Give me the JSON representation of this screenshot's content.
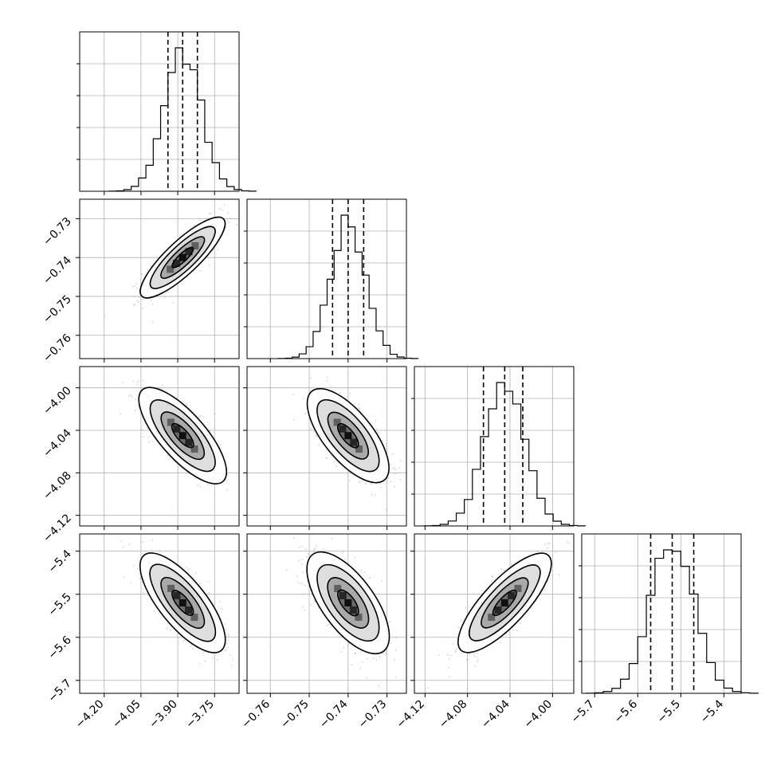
{
  "chart_data": {
    "type": "corner",
    "title": "",
    "grid": true,
    "quantile_lines": "dashed",
    "parameters": [
      {
        "range": [
          -4.3,
          -3.65
        ],
        "ticks": [
          -4.2,
          -4.05,
          -3.9,
          -3.75
        ],
        "tick_labels": [
          "−4.20",
          "−4.05",
          "−3.90",
          "−3.75"
        ],
        "quantiles": [
          -3.94,
          -3.88,
          -3.82
        ],
        "mean": -3.88,
        "sd": 0.075,
        "hist_bins": 20
      },
      {
        "range": [
          -0.766,
          -0.725
        ],
        "ticks": [
          -0.76,
          -0.75,
          -0.74,
          -0.73
        ],
        "tick_labels": [
          "−0.76",
          "−0.75",
          "−0.74",
          "−0.73"
        ],
        "quantiles": [
          -0.744,
          -0.74,
          -0.736
        ],
        "mean": -0.74,
        "sd": 0.0045,
        "hist_bins": 20
      },
      {
        "range": [
          -4.13,
          -3.98
        ],
        "ticks": [
          -4.12,
          -4.08,
          -4.04,
          -4.0
        ],
        "tick_labels": [
          "−4.12",
          "−4.08",
          "−4.04",
          "−4.00"
        ],
        "quantiles": [
          -4.065,
          -4.045,
          -4.028
        ],
        "mean": -4.045,
        "sd": 0.019,
        "hist_bins": 20
      },
      {
        "range": [
          -5.73,
          -5.36
        ],
        "ticks": [
          -5.7,
          -5.6,
          -5.5,
          -5.4
        ],
        "tick_labels": [
          "−5.7",
          "−5.6",
          "−5.5",
          "−5.4"
        ],
        "quantiles": [
          -5.57,
          -5.52,
          -5.47
        ],
        "mean": -5.52,
        "sd": 0.05,
        "hist_bins": 20
      }
    ],
    "correlations": [
      [
        1.0,
        0.85,
        -0.75,
        -0.75
      ],
      [
        0.85,
        1.0,
        -0.7,
        -0.65
      ],
      [
        -0.75,
        -0.7,
        1.0,
        0.8
      ],
      [
        -0.75,
        -0.65,
        0.8,
        1.0
      ]
    ],
    "contour_levels_sigma": [
      0.5,
      1.0,
      1.5,
      2.0
    ],
    "colors": {
      "axis": "#000000",
      "grid": "#b0b0b0",
      "density": "#000000",
      "points": "#808080"
    }
  }
}
